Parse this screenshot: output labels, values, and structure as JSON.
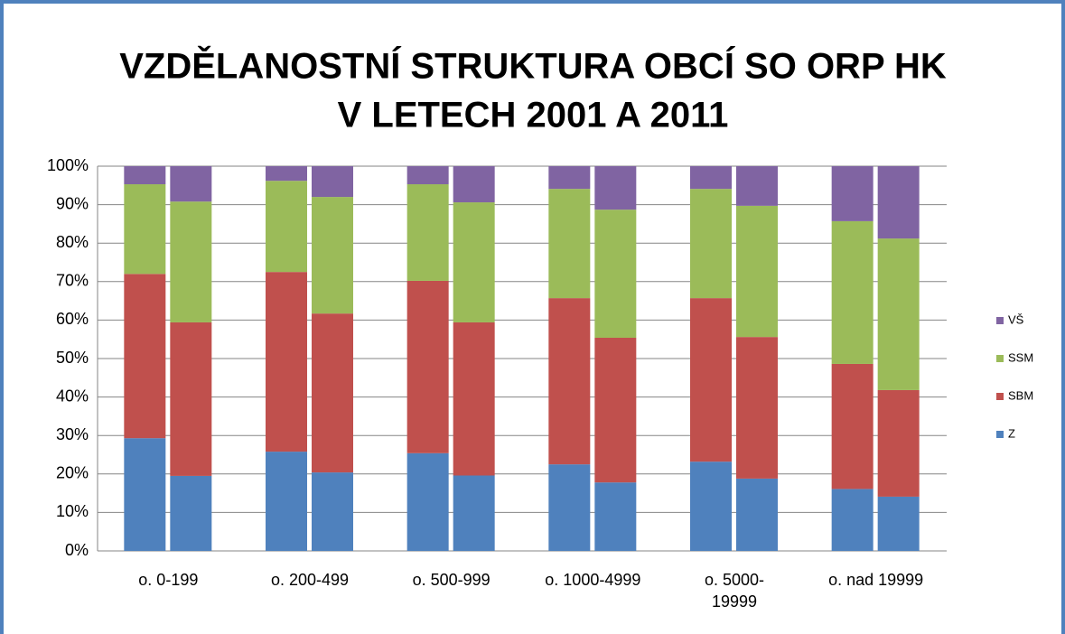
{
  "chart_data": {
    "type": "stacked_bar_grouped",
    "title": [
      "VZDĚLANOSTNÍ STRUKTURA OBCÍ SO ORP HK",
      "V LETECH 2001 A 2011"
    ],
    "categories": [
      "o. 0-199",
      "o. 200-499",
      "o. 500-999",
      "o. 1000-4999",
      "o. 5000-19999",
      "o. nad 19999"
    ],
    "series": [
      {
        "name": "Z",
        "color": "#4f81bd",
        "values": [
          [
            29.3,
            19.5
          ],
          [
            25.8,
            20.4
          ],
          [
            25.4,
            19.6
          ],
          [
            22.5,
            17.8
          ],
          [
            23.2,
            18.8
          ],
          [
            16.1,
            14.1
          ]
        ]
      },
      {
        "name": "SBM",
        "color": "#c0504d",
        "values": [
          [
            42.7,
            39.9
          ],
          [
            46.7,
            41.3
          ],
          [
            44.8,
            39.8
          ],
          [
            43.2,
            37.6
          ],
          [
            42.5,
            36.8
          ],
          [
            32.5,
            27.7
          ]
        ]
      },
      {
        "name": "SSM",
        "color": "#9bbb59",
        "values": [
          [
            23.3,
            31.4
          ],
          [
            23.7,
            30.3
          ],
          [
            25.1,
            31.2
          ],
          [
            28.4,
            33.3
          ],
          [
            28.4,
            34.1
          ],
          [
            37.1,
            39.4
          ]
        ]
      },
      {
        "name": "VŠ",
        "color": "#8064a2",
        "values": [
          [
            4.7,
            9.2
          ],
          [
            3.8,
            8.0
          ],
          [
            4.7,
            9.4
          ],
          [
            5.9,
            11.3
          ],
          [
            5.9,
            10.3
          ],
          [
            14.3,
            18.8
          ]
        ]
      }
    ],
    "ylim": [
      0,
      100
    ],
    "yticks": [
      {
        "value": 0,
        "label": "0%"
      },
      {
        "value": 10,
        "label": "10%"
      },
      {
        "value": 20,
        "label": "20%"
      },
      {
        "value": 30,
        "label": "30%"
      },
      {
        "value": 40,
        "label": "40%"
      },
      {
        "value": 50,
        "label": "50%"
      },
      {
        "value": 60,
        "label": "60%"
      },
      {
        "value": 70,
        "label": "70%"
      },
      {
        "value": 80,
        "label": "80%"
      },
      {
        "value": 90,
        "label": "90%"
      },
      {
        "value": 100,
        "label": "100%"
      }
    ],
    "grid": true,
    "legend": "right"
  }
}
